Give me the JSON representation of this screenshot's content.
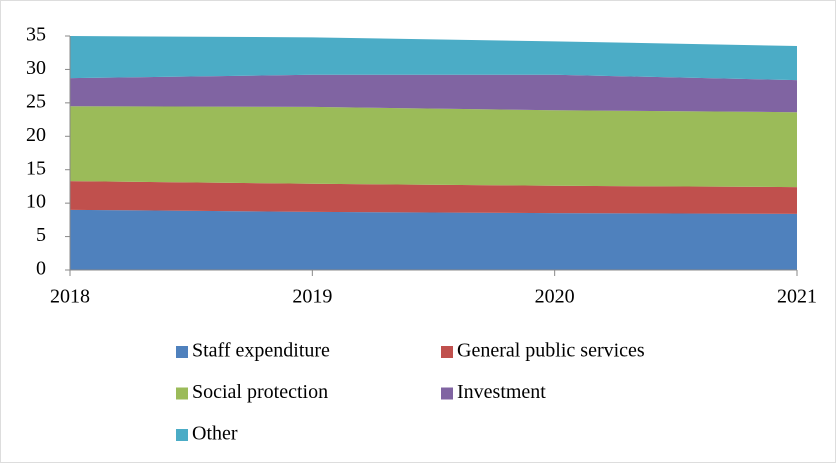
{
  "chart_data": {
    "type": "stacked_area",
    "categories": [
      "2018",
      "2019",
      "2020",
      "2021"
    ],
    "series": [
      {
        "name": "Staff expenditure",
        "color": "#4f81bd",
        "values": [
          9.0,
          8.7,
          8.5,
          8.4
        ]
      },
      {
        "name": "General public services",
        "color": "#c0504d",
        "values": [
          4.3,
          4.2,
          4.1,
          4.0
        ]
      },
      {
        "name": "Social protection",
        "color": "#9bbb59",
        "values": [
          11.2,
          11.5,
          11.3,
          11.2
        ]
      },
      {
        "name": "Investment",
        "color": "#8064a2",
        "values": [
          4.2,
          4.8,
          5.3,
          4.8
        ]
      },
      {
        "name": "Other",
        "color": "#4bacc6",
        "values": [
          6.3,
          5.6,
          5.0,
          5.1
        ]
      }
    ],
    "ylim": [
      0,
      35
    ],
    "yticks": [
      0,
      5,
      10,
      15,
      20,
      25,
      30,
      35
    ],
    "legend": "bottom"
  }
}
